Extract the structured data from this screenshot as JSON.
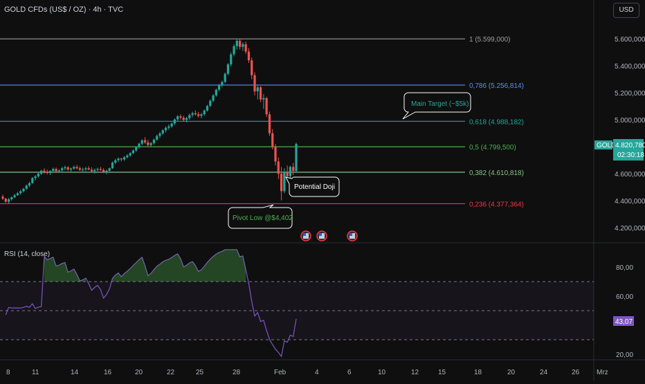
{
  "header": {
    "title": "GOLD CFDs (US$ / OZ) · 4h · TVC",
    "currency_button": "USD"
  },
  "price_axis": {
    "ticks": [
      "5.600,000",
      "5.400,000",
      "5.200,000",
      "5.000,000",
      "4.600,000",
      "4.400,000",
      "4.200,000"
    ],
    "tick_values": [
      5600,
      5400,
      5200,
      5000,
      4600,
      4400,
      4200
    ]
  },
  "current_price": {
    "symbol": "GOLD",
    "price": "4.820,780",
    "countdown": "02:30:18",
    "value": 4820.78,
    "color": "#26a69a"
  },
  "fib_levels": [
    {
      "label": "1 (5.599,000)",
      "value": 5599,
      "color": "#9e9e9e"
    },
    {
      "label": "0,786 (5.256,814)",
      "value": 5256.814,
      "color": "#5b8ff9"
    },
    {
      "label": "0,618 (4.988,182)",
      "value": 4988.182,
      "color": "#26a69a"
    },
    {
      "label": "0,5 (4.799,500)",
      "value": 4799.5,
      "color": "#4caf50"
    },
    {
      "label": "0,382 (4.610,818)",
      "value": 4610.818,
      "color": "#81c784"
    },
    {
      "label": "0,236 (4.377,364)",
      "value": 4377.364,
      "color": "#f23645"
    }
  ],
  "annotations": {
    "main_target": "Main Target (~$5k)",
    "potential_doji": "Potential Doji",
    "pivot_low": "Pivot Low @$4,402"
  },
  "x_axis": {
    "labels": [
      "8",
      "11",
      "14",
      "16",
      "20",
      "22",
      "25",
      "28",
      "Feb",
      "4",
      "6",
      "10",
      "12",
      "15",
      "18",
      "20",
      "24",
      "26",
      "Mrz"
    ]
  },
  "rsi": {
    "title": "RSI (14, close)",
    "value_label": "43,07",
    "value": 43.07,
    "axis_ticks": [
      "80,00",
      "60,00",
      "20,00"
    ],
    "axis_values": [
      80,
      60,
      20
    ],
    "overbought": 70,
    "oversold": 30,
    "middle": 50,
    "line_color": "#7e57c2"
  },
  "colors": {
    "up": "#26a69a",
    "down": "#ef5350",
    "background": "#0f0f0f"
  },
  "chart_data": {
    "type": "candlestick",
    "title": "GOLD CFDs (US$ / OZ) · 4h · TVC",
    "ylim": [
      4100,
      5700
    ],
    "candles": [
      [
        4430,
        4445,
        4405,
        4415
      ],
      [
        4415,
        4420,
        4385,
        4392
      ],
      [
        4392,
        4420,
        4380,
        4410
      ],
      [
        4410,
        4430,
        4400,
        4425
      ],
      [
        4425,
        4450,
        4420,
        4440
      ],
      [
        4440,
        4465,
        4435,
        4455
      ],
      [
        4455,
        4480,
        4445,
        4470
      ],
      [
        4470,
        4495,
        4460,
        4488
      ],
      [
        4488,
        4520,
        4480,
        4512
      ],
      [
        4512,
        4540,
        4500,
        4530
      ],
      [
        4530,
        4575,
        4525,
        4568
      ],
      [
        4568,
        4590,
        4550,
        4580
      ],
      [
        4580,
        4610,
        4570,
        4600
      ],
      [
        4600,
        4630,
        4590,
        4622
      ],
      [
        4622,
        4640,
        4600,
        4612
      ],
      [
        4612,
        4630,
        4595,
        4605
      ],
      [
        4605,
        4625,
        4590,
        4620
      ],
      [
        4620,
        4645,
        4610,
        4635
      ],
      [
        4635,
        4645,
        4610,
        4618
      ],
      [
        4618,
        4632,
        4605,
        4625
      ],
      [
        4625,
        4650,
        4615,
        4640
      ],
      [
        4640,
        4660,
        4625,
        4648
      ],
      [
        4648,
        4655,
        4620,
        4630
      ],
      [
        4630,
        4645,
        4615,
        4638
      ],
      [
        4638,
        4660,
        4628,
        4650
      ],
      [
        4650,
        4665,
        4630,
        4640
      ],
      [
        4640,
        4655,
        4620,
        4628
      ],
      [
        4628,
        4645,
        4612,
        4632
      ],
      [
        4632,
        4650,
        4618,
        4640
      ],
      [
        4640,
        4655,
        4625,
        4630
      ],
      [
        4630,
        4648,
        4610,
        4618
      ],
      [
        4618,
        4638,
        4600,
        4628
      ],
      [
        4628,
        4645,
        4615,
        4635
      ],
      [
        4635,
        4650,
        4620,
        4628
      ],
      [
        4628,
        4640,
        4605,
        4612
      ],
      [
        4612,
        4630,
        4595,
        4622
      ],
      [
        4622,
        4645,
        4615,
        4640
      ],
      [
        4640,
        4690,
        4635,
        4682
      ],
      [
        4682,
        4710,
        4670,
        4700
      ],
      [
        4700,
        4720,
        4685,
        4712
      ],
      [
        4712,
        4718,
        4690,
        4705
      ],
      [
        4705,
        4730,
        4695,
        4722
      ],
      [
        4722,
        4745,
        4712,
        4735
      ],
      [
        4735,
        4760,
        4725,
        4752
      ],
      [
        4752,
        4780,
        4745,
        4772
      ],
      [
        4772,
        4800,
        4760,
        4795
      ],
      [
        4795,
        4830,
        4785,
        4822
      ],
      [
        4822,
        4855,
        4810,
        4848
      ],
      [
        4848,
        4870,
        4820,
        4832
      ],
      [
        4832,
        4850,
        4800,
        4812
      ],
      [
        4812,
        4835,
        4795,
        4826
      ],
      [
        4826,
        4860,
        4815,
        4852
      ],
      [
        4852,
        4890,
        4845,
        4880
      ],
      [
        4880,
        4910,
        4865,
        4898
      ],
      [
        4898,
        4930,
        4888,
        4922
      ],
      [
        4922,
        4950,
        4905,
        4940
      ],
      [
        4940,
        4965,
        4925,
        4950
      ],
      [
        4950,
        4980,
        4940,
        4972
      ],
      [
        4972,
        5010,
        4960,
        5002
      ],
      [
        5002,
        5035,
        4990,
        5025
      ],
      [
        5025,
        5040,
        5000,
        5015
      ],
      [
        5015,
        5030,
        4985,
        4998
      ],
      [
        4998,
        5020,
        4980,
        5012
      ],
      [
        5012,
        5045,
        5000,
        5035
      ],
      [
        5035,
        5060,
        5018,
        5048
      ],
      [
        5048,
        5070,
        5030,
        5040
      ],
      [
        5040,
        5058,
        5015,
        5028
      ],
      [
        5028,
        5050,
        5010,
        5040
      ],
      [
        5040,
        5075,
        5030,
        5068
      ],
      [
        5068,
        5110,
        5060,
        5102
      ],
      [
        5102,
        5150,
        5095,
        5140
      ],
      [
        5140,
        5190,
        5130,
        5180
      ],
      [
        5180,
        5230,
        5170,
        5222
      ],
      [
        5222,
        5265,
        5210,
        5255
      ],
      [
        5255,
        5290,
        5240,
        5280
      ],
      [
        5280,
        5350,
        5270,
        5340
      ],
      [
        5340,
        5420,
        5330,
        5410
      ],
      [
        5410,
        5500,
        5395,
        5485
      ],
      [
        5485,
        5560,
        5470,
        5545
      ],
      [
        5545,
        5599,
        5520,
        5585
      ],
      [
        5585,
        5599,
        5520,
        5540
      ],
      [
        5540,
        5575,
        5510,
        5560
      ],
      [
        5560,
        5580,
        5490,
        5505
      ],
      [
        5505,
        5530,
        5420,
        5440
      ],
      [
        5440,
        5460,
        5300,
        5330
      ],
      [
        5330,
        5350,
        5180,
        5210
      ],
      [
        5210,
        5260,
        5150,
        5240
      ],
      [
        5240,
        5250,
        5130,
        5150
      ],
      [
        5150,
        5190,
        5080,
        5160
      ],
      [
        5160,
        5170,
        5020,
        5040
      ],
      [
        5040,
        5060,
        4880,
        4900
      ],
      [
        4900,
        4930,
        4780,
        4800
      ],
      [
        4800,
        4820,
        4660,
        4690
      ],
      [
        4690,
        4720,
        4560,
        4600
      ],
      [
        4600,
        4650,
        4402,
        4470
      ],
      [
        4470,
        4640,
        4455,
        4610
      ],
      [
        4610,
        4660,
        4560,
        4580
      ],
      [
        4580,
        4660,
        4570,
        4650
      ],
      [
        4650,
        4680,
        4590,
        4620
      ],
      [
        4620,
        4830,
        4610,
        4820
      ]
    ]
  }
}
